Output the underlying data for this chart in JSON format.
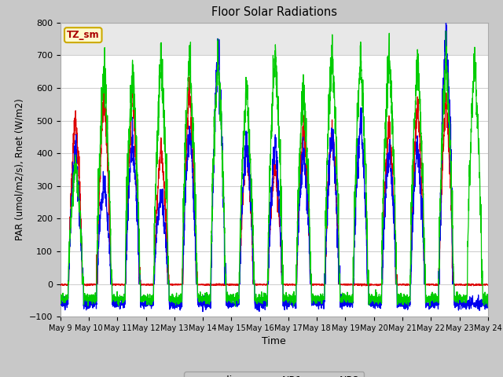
{
  "title": "Floor Solar Radiations",
  "ylabel": "PAR (umol/m2/s), Rnet (W/m2)",
  "xlabel": "Time",
  "ylim": [
    -100,
    800
  ],
  "yticks": [
    -100,
    0,
    100,
    200,
    300,
    400,
    500,
    600,
    700,
    800
  ],
  "xtick_labels": [
    "May 9",
    "May 10",
    "May 11",
    "May 12",
    "May 13",
    "May 14",
    "May 15",
    "May 16",
    "May 17",
    "May 18",
    "May 19",
    "May 20",
    "May 21",
    "May 22",
    "May 23",
    "May 24"
  ],
  "legend_label": "TZ_sm",
  "legend_box_color": "#FFFACD",
  "legend_box_edge": "#CCAA00",
  "line_colors": {
    "q_line": "#DD0000",
    "NR1": "#0000EE",
    "NR2": "#00CC00"
  },
  "fig_bg_color": "#C8C8C8",
  "plot_bg_color": "#FFFFFF",
  "grid_color": "#D0D0D0",
  "shade_color": "#E8E8E8",
  "num_days": 15,
  "q_peaks": [
    520,
    590,
    600,
    430,
    600,
    0,
    420,
    370,
    490,
    490,
    0,
    510,
    560,
    570,
    0
  ],
  "nr1_peaks": [
    410,
    320,
    450,
    280,
    480,
    730,
    460,
    440,
    415,
    490,
    510,
    420,
    430,
    780,
    0
  ],
  "nr2_peaks": [
    370,
    665,
    670,
    700,
    715,
    695,
    600,
    720,
    600,
    720,
    705,
    715,
    695,
    700,
    695
  ]
}
